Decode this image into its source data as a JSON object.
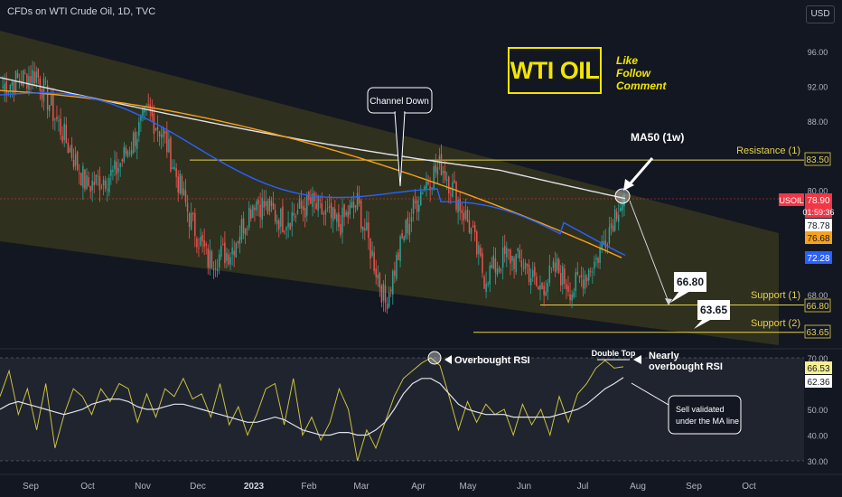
{
  "header": {
    "title": "CFDs on WTI Crude Oil, 1D, TVC",
    "currency": "USD"
  },
  "branding": {
    "title": "WTI OIL",
    "cta": [
      "Like",
      "Follow",
      "Comment"
    ]
  },
  "colors": {
    "background": "#131722",
    "up": "#26a69a",
    "down": "#ef5350",
    "channel": "#3b3a1d",
    "ma_white": "#e0e3eb",
    "ma_orange": "#f7a21b",
    "ma_blue": "#2962ff",
    "level_yellow": "#e5d04b",
    "rsi": "#c9c23d",
    "rsi_ma": "#e0e3eb",
    "symbol_red": "#f23645"
  },
  "annotations": {
    "channel": "Channel Down",
    "ma50": "MA50 (1w)",
    "overbought_rsi": "Overbought RSI",
    "double_top": "Double Top",
    "nearly_overbought": [
      "Nearly",
      "overbought RSI"
    ],
    "sell_validated": [
      "Sell validated",
      "under the MA line"
    ],
    "target1": "66.80",
    "target2": "63.65"
  },
  "levels": [
    {
      "label": "Resistance (1)",
      "value": 83.5,
      "value_text": "83.50"
    },
    {
      "label": "Support (1)",
      "value": 66.8,
      "value_text": "66.80"
    },
    {
      "label": "Support (2)",
      "value": 63.65,
      "value_text": "63.65"
    }
  ],
  "price_badges": [
    {
      "text": "USOIL",
      "kind": "symbol"
    },
    {
      "text": "78.90",
      "kind": "last"
    },
    {
      "text": "01:59:36",
      "kind": "timer"
    },
    {
      "text": "78.78",
      "kind": "ma_white"
    },
    {
      "text": "76.68",
      "kind": "ma_orange"
    },
    {
      "text": "72.28",
      "kind": "ma_blue"
    }
  ],
  "rsi_badges": [
    "66.53",
    "62.36"
  ],
  "chart_data": [
    {
      "type": "candlestick",
      "title": "CFDs on WTI Crude Oil, 1D, TVC",
      "x_tick_labels": [
        "Sep",
        "Oct",
        "Nov",
        "Dec",
        "2023",
        "Feb",
        "Mar",
        "Apr",
        "May",
        "Jun",
        "Jul",
        "Aug",
        "Sep",
        "Oct"
      ],
      "y_ticks": [
        68.0,
        72.0,
        76.0,
        80.0,
        84.0,
        88.0,
        92.0,
        96.0
      ],
      "y_tick_labels": [
        "68.00",
        "72.00",
        "76.00",
        "80.00",
        "84.00",
        "88.00",
        "92.00",
        "96.00"
      ],
      "ylim": [
        61.5,
        100.5
      ],
      "segments": [
        {
          "from": 0,
          "to": 18,
          "start": 92.0,
          "end": 93.5
        },
        {
          "from": 18,
          "to": 28,
          "start": 93.5,
          "end": 88.5
        },
        {
          "from": 28,
          "to": 45,
          "start": 88.5,
          "end": 80.5
        },
        {
          "from": 45,
          "to": 60,
          "start": 80.5,
          "end": 82.0
        },
        {
          "from": 60,
          "to": 78,
          "start": 82.0,
          "end": 89.0
        },
        {
          "from": 78,
          "to": 86,
          "start": 89.0,
          "end": 86.5
        },
        {
          "from": 86,
          "to": 100,
          "start": 86.5,
          "end": 77.0
        },
        {
          "from": 100,
          "to": 110,
          "start": 77.0,
          "end": 72.0
        },
        {
          "from": 110,
          "to": 122,
          "start": 72.0,
          "end": 73.0
        },
        {
          "from": 122,
          "to": 135,
          "start": 73.0,
          "end": 79.0
        },
        {
          "from": 135,
          "to": 150,
          "start": 79.0,
          "end": 76.5
        },
        {
          "from": 150,
          "to": 165,
          "start": 76.5,
          "end": 78.5
        },
        {
          "from": 165,
          "to": 180,
          "start": 78.5,
          "end": 76.0
        },
        {
          "from": 180,
          "to": 190,
          "start": 76.0,
          "end": 78.5
        },
        {
          "from": 190,
          "to": 200,
          "start": 78.5,
          "end": 71.0
        },
        {
          "from": 200,
          "to": 205,
          "start": 71.0,
          "end": 67.0
        },
        {
          "from": 205,
          "to": 215,
          "start": 67.0,
          "end": 75.0
        },
        {
          "from": 215,
          "to": 225,
          "start": 75.0,
          "end": 80.5
        },
        {
          "from": 225,
          "to": 235,
          "start": 80.5,
          "end": 83.0
        },
        {
          "from": 235,
          "to": 250,
          "start": 83.0,
          "end": 76.0
        },
        {
          "from": 250,
          "to": 258,
          "start": 76.0,
          "end": 70.0
        },
        {
          "from": 258,
          "to": 270,
          "start": 70.0,
          "end": 72.5
        },
        {
          "from": 270,
          "to": 280,
          "start": 72.5,
          "end": 71.5
        },
        {
          "from": 280,
          "to": 287,
          "start": 71.5,
          "end": 68.5
        },
        {
          "from": 287,
          "to": 297,
          "start": 68.5,
          "end": 71.0
        },
        {
          "from": 297,
          "to": 305,
          "start": 71.0,
          "end": 68.5
        },
        {
          "from": 305,
          "to": 318,
          "start": 68.5,
          "end": 72.0
        },
        {
          "from": 318,
          "to": 330,
          "start": 72.0,
          "end": 78.5
        },
        {
          "from": 330,
          "to": 334,
          "start": 78.5,
          "end": 79.0
        }
      ]
    },
    {
      "type": "line",
      "title": "RSI",
      "y_ticks": [
        30.0,
        40.0,
        50.0,
        60.0,
        70.0
      ],
      "y_tick_labels": [
        "30.00",
        "40.00",
        "50.00",
        "60.00",
        "70.00"
      ],
      "ylim": [
        28,
        71
      ],
      "series": [
        {
          "values": [
            55,
            65,
            48,
            58,
            42,
            60,
            35,
            48,
            58,
            55,
            48,
            58,
            53,
            60,
            58,
            45,
            56,
            47,
            58,
            55,
            62,
            54,
            56,
            47,
            60,
            44,
            51,
            40,
            48,
            58,
            60,
            44,
            62,
            40,
            47,
            38,
            45,
            58,
            50,
            30,
            42,
            35,
            45,
            55,
            62,
            65,
            68,
            70,
            67,
            55,
            42,
            53,
            45,
            52,
            48,
            50,
            40,
            52,
            44,
            50,
            40,
            55,
            45,
            56,
            60,
            66,
            69,
            66,
            66.53
          ]
        },
        {
          "values": [
            50,
            52,
            53,
            52,
            51,
            50,
            49,
            48,
            49,
            50,
            52,
            53,
            54,
            54,
            53,
            51,
            50,
            50,
            51,
            52,
            52,
            51,
            50,
            49,
            48,
            47,
            46,
            45,
            45,
            46,
            47,
            46,
            44,
            42,
            41,
            40,
            40,
            41,
            41,
            40,
            40,
            42,
            45,
            50,
            56,
            60,
            62,
            62,
            60,
            56,
            52,
            50,
            49,
            48,
            48,
            48,
            47,
            47,
            47,
            47,
            47,
            48,
            49,
            50,
            52,
            55,
            58,
            60,
            62.36
          ]
        }
      ]
    }
  ]
}
